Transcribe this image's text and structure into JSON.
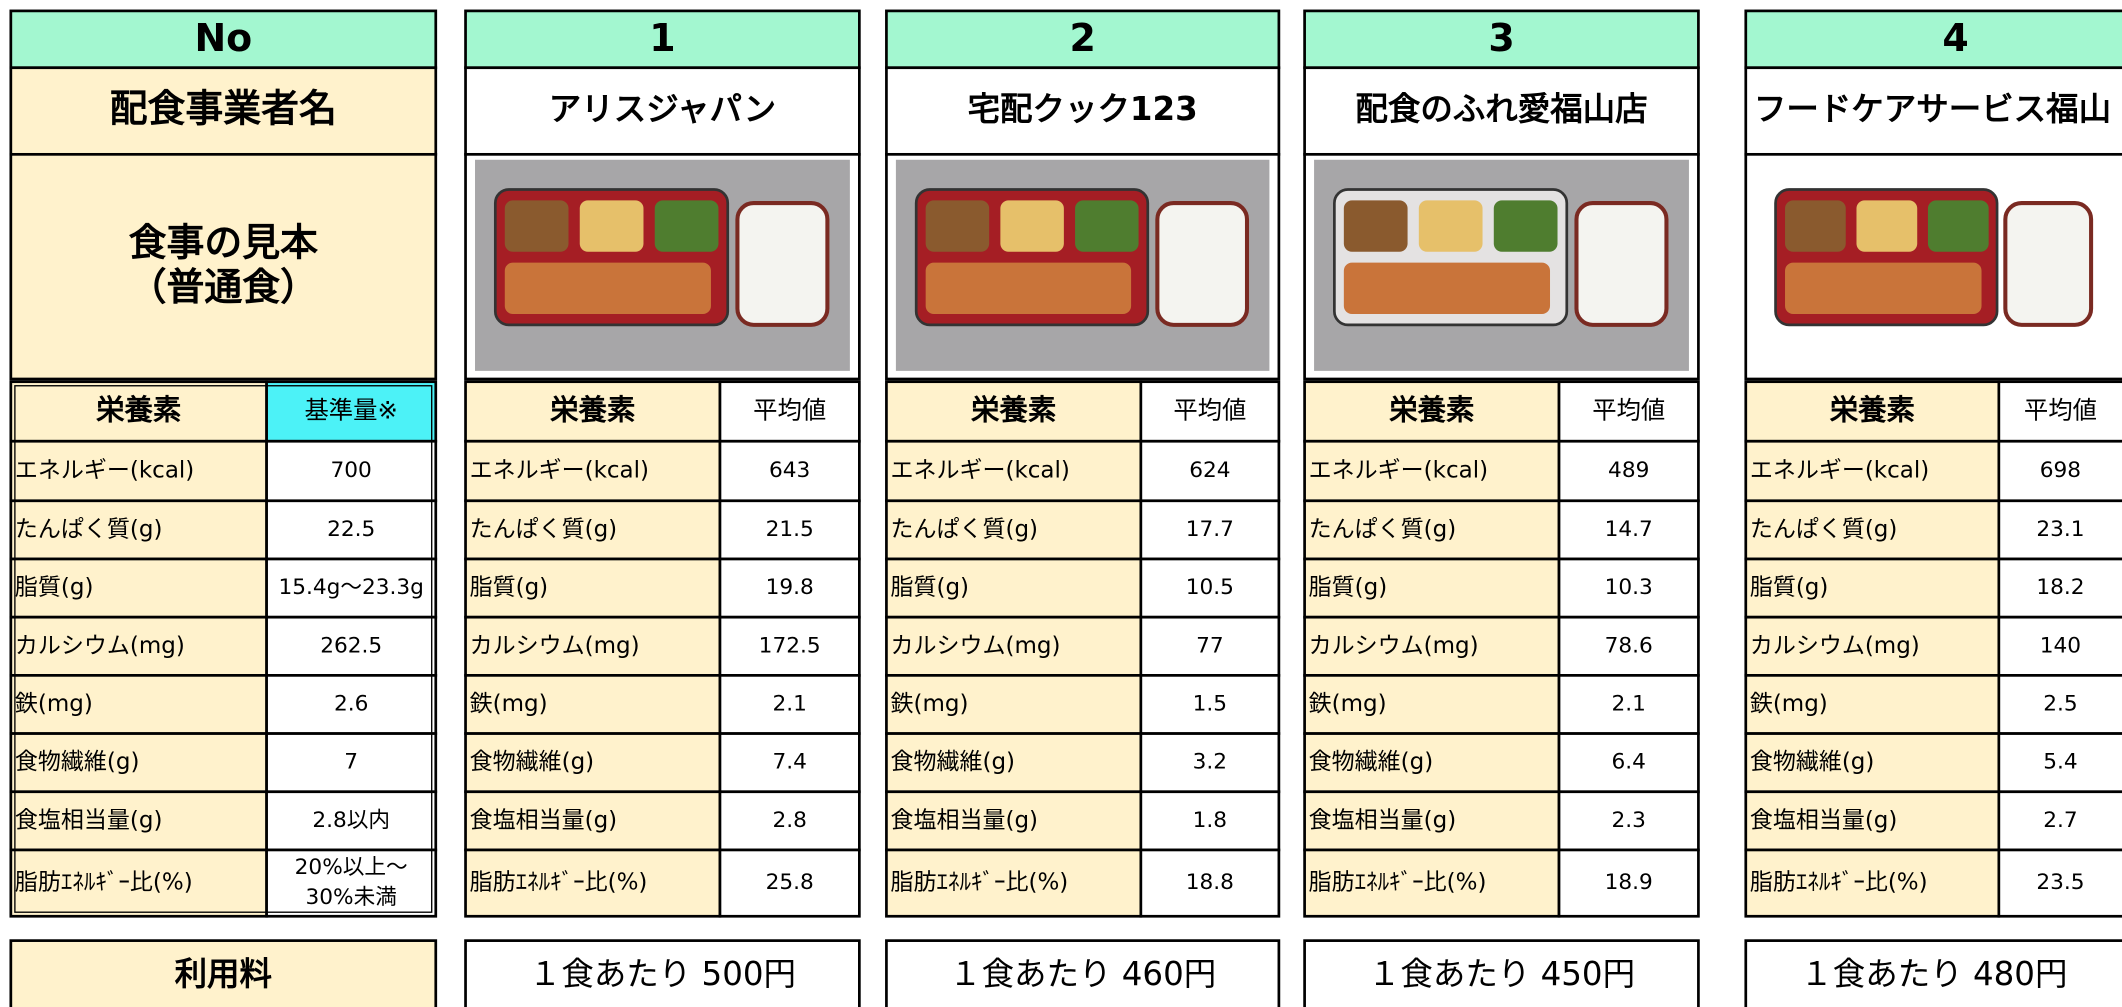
{
  "header_label": "No",
  "provider_label": "配食事業者名",
  "sample_label": [
    "食事の見本",
    "（普通食）"
  ],
  "nutrient_header": "栄養素",
  "standard_header": "基準量※",
  "average_header": "平均値",
  "nutrients": [
    "エネルギー(kcal)",
    "たんぱく質(g)",
    "脂質(g)",
    "カルシウム(mg)",
    "鉄(mg)",
    "食物繊維(g)",
    "食塩相当量(g)",
    "脂肪ｴﾈﾙｷﾞｰ比(%)"
  ],
  "standards": [
    "700",
    "22.5",
    "15.4g～23.3g",
    "262.5",
    "2.6",
    "7",
    "2.8以内",
    [
      "20%以上～",
      "30%未満"
    ]
  ],
  "fee_label": "利用料",
  "providers": [
    {
      "no": "1",
      "name": "アリスジャパン",
      "values": [
        643,
        21.5,
        19.8,
        172.5,
        2.1,
        7.4,
        2.8,
        25.8
      ],
      "fee": "１食あたり 500円"
    },
    {
      "no": "2",
      "name": "宅配クック123",
      "values": [
        624,
        17.7,
        10.5,
        77,
        1.5,
        3.2,
        1.8,
        18.8
      ],
      "fee": "１食あたり 460円"
    },
    {
      "no": "3",
      "name": "配食のふれ愛福山店",
      "values": [
        489,
        14.7,
        10.3,
        78.6,
        2.1,
        6.4,
        2.3,
        18.9
      ],
      "fee": "１食あたり 450円"
    },
    {
      "no": "4",
      "name": "フードケアサービス福山",
      "values": [
        698,
        23.1,
        18.2,
        140,
        2.5,
        5.4,
        2.7,
        23.5
      ],
      "fee": "１食あたり 480円"
    }
  ]
}
